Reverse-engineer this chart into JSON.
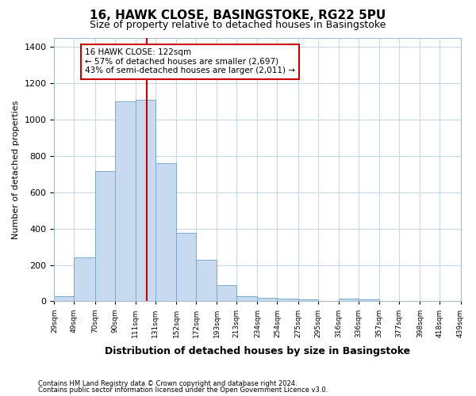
{
  "title": "16, HAWK CLOSE, BASINGSTOKE, RG22 5PU",
  "subtitle": "Size of property relative to detached houses in Basingstoke",
  "xlabel": "Distribution of detached houses by size in Basingstoke",
  "ylabel": "Number of detached properties",
  "footnote1": "Contains HM Land Registry data © Crown copyright and database right 2024.",
  "footnote2": "Contains public sector information licensed under the Open Government Licence v3.0.",
  "bar_color": "#c8daf0",
  "bar_edge_color": "#7aaad0",
  "grid_color": "#c8d8e8",
  "property_line_x": 122,
  "property_line_color": "#cc0000",
  "annotation_text": "16 HAWK CLOSE: 122sqm\n← 57% of detached houses are smaller (2,697)\n43% of semi-detached houses are larger (2,011) →",
  "annotation_box_edgecolor": "#cc0000",
  "bin_edges": [
    29,
    49,
    70,
    90,
    111,
    131,
    152,
    172,
    193,
    213,
    234,
    254,
    275,
    295,
    316,
    336,
    357,
    377,
    398,
    418,
    439
  ],
  "bin_counts": [
    30,
    240,
    715,
    1100,
    1110,
    760,
    375,
    230,
    90,
    30,
    20,
    15,
    10,
    0,
    15,
    10,
    0,
    0,
    0,
    0
  ],
  "ylim": [
    0,
    1450
  ],
  "yticks": [
    0,
    200,
    400,
    600,
    800,
    1000,
    1200,
    1400
  ],
  "background_color": "#ffffff",
  "figsize": [
    6.0,
    5.0
  ],
  "dpi": 100
}
